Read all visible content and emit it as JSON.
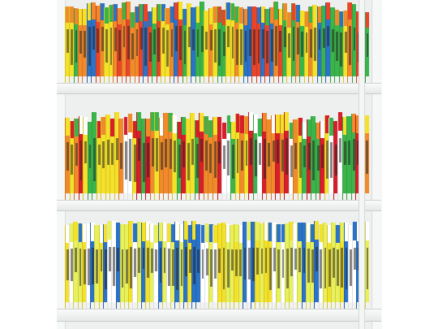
{
  "scene": {
    "description_colors": {
      "background": "#ffffff",
      "shelf": "#eef0f0",
      "book_palette": [
        "#f4e12a",
        "#e8f05a",
        "#f08a2a",
        "#e8452a",
        "#3bb54a",
        "#9ed43a",
        "#2a73c8",
        "#d61f2a",
        "#f7b7c8",
        "#ffffff"
      ]
    },
    "shelves": [
      {
        "id": "top",
        "book_count": 70,
        "dominant_colors": [
          "#f4e12a",
          "#3bb54a",
          "#f08a2a",
          "#e8452a",
          "#2a73c8"
        ]
      },
      {
        "id": "middle",
        "book_count": 68,
        "dominant_colors": [
          "#f08a2a",
          "#3bb54a",
          "#f4e12a",
          "#d61f2a",
          "#ffffff"
        ]
      },
      {
        "id": "bottom",
        "book_count": 72,
        "dominant_colors": [
          "#e8f05a",
          "#f4e12a",
          "#2a73c8",
          "#ffffff"
        ]
      }
    ]
  }
}
